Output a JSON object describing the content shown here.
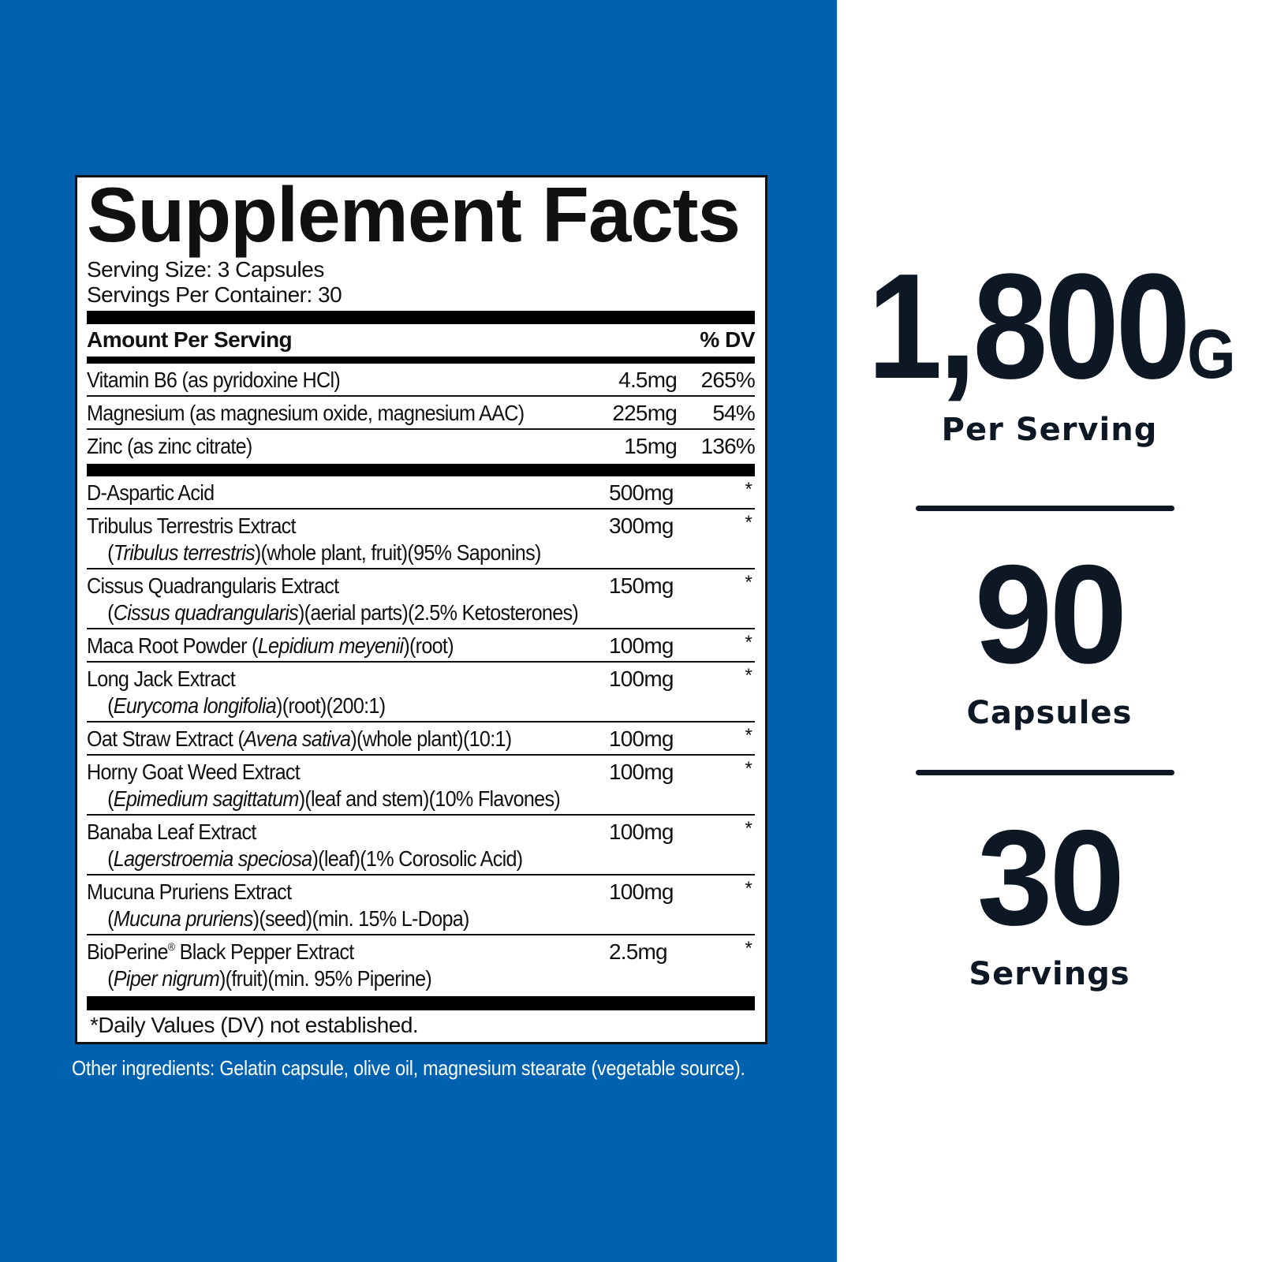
{
  "colors": {
    "background_blue": "#0062AF",
    "text_dark": "#0d1824",
    "label_black": "#111111"
  },
  "label": {
    "title": "Supplement Facts",
    "serving_size": "Serving Size: 3 Capsules",
    "servings_per_container": "Servings Per Container: 30",
    "header_amount": "Amount Per Serving",
    "header_dv": "% DV",
    "nutrients": [
      {
        "line1": [
          {
            "t": "Vitamin B6 (as pyridoxine HCl)"
          }
        ],
        "amount": "4.5mg",
        "dv": "265%"
      },
      {
        "line1": [
          {
            "t": "Magnesium (as magnesium oxide, magnesium AAC)"
          }
        ],
        "amount": "225mg",
        "dv": "54%"
      },
      {
        "line1": [
          {
            "t": "Zinc (as zinc citrate)"
          }
        ],
        "amount": "15mg",
        "dv": "136%"
      }
    ],
    "ingredients": [
      {
        "line1": [
          {
            "t": "D-Aspartic Acid"
          }
        ],
        "amount": "500mg",
        "dv": "*"
      },
      {
        "line1": [
          {
            "t": "Tribulus Terrestris Extract"
          }
        ],
        "line2": [
          {
            "t": "("
          },
          {
            "t": "Tribulus terrestris",
            "i": true
          },
          {
            "t": ")(whole plant, fruit)(95% Saponins)"
          }
        ],
        "amount": "300mg",
        "dv": "*"
      },
      {
        "line1": [
          {
            "t": "Cissus Quadrangularis Extract"
          }
        ],
        "line2": [
          {
            "t": "("
          },
          {
            "t": "Cissus quadrangularis",
            "i": true
          },
          {
            "t": ")(aerial parts)(2.5% Ketosterones)"
          }
        ],
        "amount": "150mg",
        "dv": "*"
      },
      {
        "line1": [
          {
            "t": "Maca Root Powder ("
          },
          {
            "t": "Lepidium meyenii",
            "i": true
          },
          {
            "t": ")(root)"
          }
        ],
        "amount": "100mg",
        "dv": "*"
      },
      {
        "line1": [
          {
            "t": "Long Jack Extract"
          }
        ],
        "line2": [
          {
            "t": "("
          },
          {
            "t": "Eurycoma longifolia",
            "i": true
          },
          {
            "t": ")(root)(200:1)"
          }
        ],
        "amount": "100mg",
        "dv": "*"
      },
      {
        "line1": [
          {
            "t": "Oat Straw Extract ("
          },
          {
            "t": "Avena sativa",
            "i": true
          },
          {
            "t": ")(whole plant)(10:1)"
          }
        ],
        "amount": "100mg",
        "dv": "*"
      },
      {
        "line1": [
          {
            "t": "Horny Goat Weed Extract"
          }
        ],
        "line2": [
          {
            "t": "("
          },
          {
            "t": "Epimedium sagittatum",
            "i": true
          },
          {
            "t": ")(leaf and stem)(10% Flavones)"
          }
        ],
        "amount": "100mg",
        "dv": "*"
      },
      {
        "line1": [
          {
            "t": "Banaba Leaf Extract"
          }
        ],
        "line2": [
          {
            "t": "("
          },
          {
            "t": "Lagerstroemia speciosa",
            "i": true
          },
          {
            "t": ")(leaf)(1% Corosolic Acid)"
          }
        ],
        "amount": "100mg",
        "dv": "*"
      },
      {
        "line1": [
          {
            "t": "Mucuna Pruriens Extract"
          }
        ],
        "line2": [
          {
            "t": "("
          },
          {
            "t": "Mucuna pruriens",
            "i": true
          },
          {
            "t": ")(seed)(min. 15% L-Dopa)"
          }
        ],
        "amount": "100mg",
        "dv": "*"
      },
      {
        "line1": [
          {
            "t": "BioPerine"
          },
          {
            "t": "®",
            "sup": true
          },
          {
            "t": " Black Pepper Extract"
          }
        ],
        "line2": [
          {
            "t": "("
          },
          {
            "t": "Piper nigrum",
            "i": true
          },
          {
            "t": ")(fruit)(min. 95% Piperine)"
          }
        ],
        "amount": "2.5mg",
        "dv": "*"
      }
    ],
    "footnote": "*Daily Values (DV) not established."
  },
  "other_ingredients": "Other ingredients: Gelatin capsule, olive oil, magnesium stearate (vegetable source).",
  "stats": {
    "amount_value": "1,800",
    "amount_unit": "G",
    "amount_label": "Per Serving",
    "capsules_value": "90",
    "capsules_label": "Capsules",
    "servings_value": "30",
    "servings_label": "Servings"
  }
}
